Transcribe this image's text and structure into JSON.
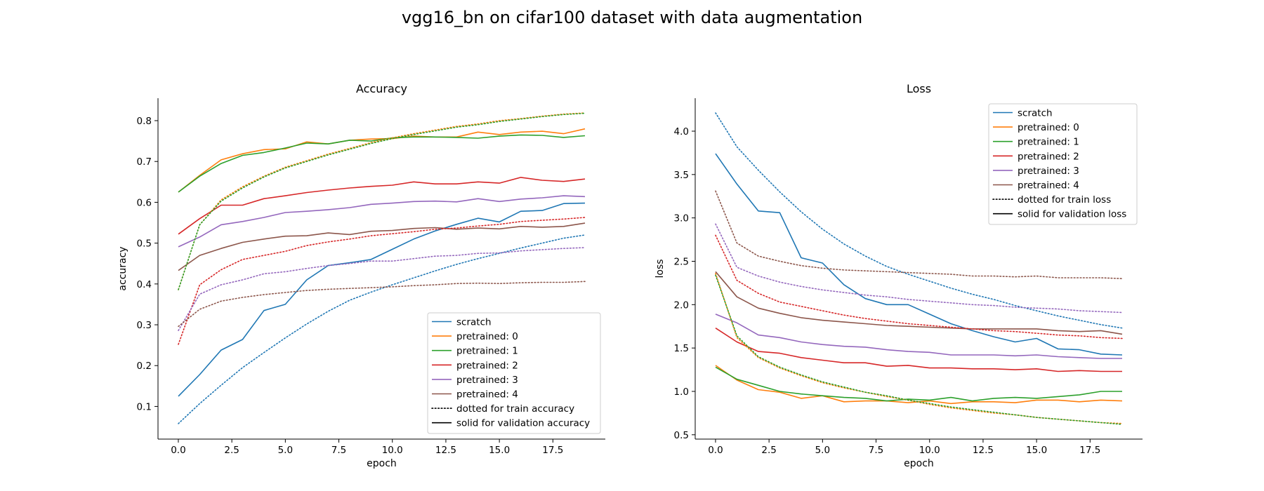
{
  "figure": {
    "suptitle": "vgg16_bn on cifar100 dataset with data augmentation"
  },
  "colors": {
    "scratch": "#1f77b4",
    "pretrained_0": "#ff7f0e",
    "pretrained_1": "#2ca02c",
    "pretrained_2": "#d62728",
    "pretrained_3": "#9467bd",
    "pretrained_4": "#8c564b"
  },
  "chart_data": [
    {
      "type": "line",
      "title": "Accuracy",
      "xlabel": "epoch",
      "ylabel": "accuracy",
      "xlim": [
        -0.95,
        19.95
      ],
      "ylim": [
        0.02,
        0.855
      ],
      "xticks": [
        0.0,
        2.5,
        5.0,
        7.5,
        10.0,
        12.5,
        15.0,
        17.5
      ],
      "xtick_labels": [
        "0.0",
        "2.5",
        "5.0",
        "7.5",
        "10.0",
        "12.5",
        "15.0",
        "17.5"
      ],
      "yticks": [
        0.1,
        0.2,
        0.3,
        0.4,
        0.5,
        0.6,
        0.7,
        0.8
      ],
      "ytick_labels": [
        "0.1",
        "0.2",
        "0.3",
        "0.4",
        "0.5",
        "0.6",
        "0.7",
        "0.8"
      ],
      "grid": false,
      "legend_loc": "lower right",
      "legend": [
        "scratch",
        "pretrained: 0",
        "pretrained: 1",
        "pretrained: 2",
        "pretrained: 3",
        "pretrained: 4",
        "dotted for train accuracy",
        "solid for validation accuracy"
      ],
      "x": [
        0,
        1,
        2,
        3,
        4,
        5,
        6,
        7,
        8,
        9,
        10,
        11,
        12,
        13,
        14,
        15,
        16,
        17,
        18,
        19
      ],
      "series": [
        {
          "name": "scratch",
          "style": "solid",
          "color": "#1f77b4",
          "values": [
            0.125,
            0.178,
            0.238,
            0.264,
            0.335,
            0.35,
            0.41,
            0.445,
            0.452,
            0.46,
            0.485,
            0.51,
            0.53,
            0.546,
            0.561,
            0.552,
            0.578,
            0.58,
            0.597,
            0.598
          ]
        },
        {
          "name": "pretrained: 0",
          "style": "solid",
          "color": "#ff7f0e",
          "values": [
            0.625,
            0.666,
            0.704,
            0.719,
            0.729,
            0.731,
            0.748,
            0.743,
            0.752,
            0.755,
            0.756,
            0.762,
            0.76,
            0.76,
            0.772,
            0.766,
            0.772,
            0.774,
            0.768,
            0.78
          ]
        },
        {
          "name": "pretrained: 1",
          "style": "solid",
          "color": "#2ca02c",
          "values": [
            0.625,
            0.664,
            0.695,
            0.715,
            0.722,
            0.733,
            0.745,
            0.743,
            0.752,
            0.75,
            0.758,
            0.76,
            0.76,
            0.759,
            0.757,
            0.762,
            0.765,
            0.764,
            0.759,
            0.763
          ]
        },
        {
          "name": "pretrained: 2",
          "style": "solid",
          "color": "#d62728",
          "values": [
            0.522,
            0.56,
            0.593,
            0.593,
            0.609,
            0.616,
            0.624,
            0.63,
            0.635,
            0.639,
            0.642,
            0.65,
            0.645,
            0.645,
            0.65,
            0.647,
            0.661,
            0.654,
            0.651,
            0.657
          ]
        },
        {
          "name": "pretrained: 3",
          "style": "solid",
          "color": "#9467bd",
          "values": [
            0.491,
            0.515,
            0.545,
            0.553,
            0.563,
            0.575,
            0.578,
            0.582,
            0.587,
            0.595,
            0.598,
            0.602,
            0.603,
            0.601,
            0.609,
            0.602,
            0.608,
            0.611,
            0.616,
            0.614
          ]
        },
        {
          "name": "pretrained: 4",
          "style": "solid",
          "color": "#8c564b",
          "values": [
            0.433,
            0.47,
            0.487,
            0.502,
            0.51,
            0.517,
            0.518,
            0.525,
            0.521,
            0.529,
            0.531,
            0.536,
            0.538,
            0.534,
            0.537,
            0.535,
            0.541,
            0.539,
            0.541,
            0.549
          ]
        },
        {
          "name": "scratch",
          "style": "dotted",
          "color": "#1f77b4",
          "values": [
            0.058,
            0.107,
            0.152,
            0.195,
            0.232,
            0.268,
            0.302,
            0.333,
            0.36,
            0.38,
            0.398,
            0.415,
            0.432,
            0.448,
            0.462,
            0.475,
            0.488,
            0.5,
            0.512,
            0.52
          ]
        },
        {
          "name": "pretrained: 0",
          "style": "dotted",
          "color": "#ff7f0e",
          "values": [
            0.386,
            0.545,
            0.606,
            0.638,
            0.664,
            0.686,
            0.702,
            0.718,
            0.732,
            0.746,
            0.758,
            0.768,
            0.777,
            0.786,
            0.792,
            0.8,
            0.805,
            0.811,
            0.816,
            0.819
          ]
        },
        {
          "name": "pretrained: 1",
          "style": "dotted",
          "color": "#2ca02c",
          "values": [
            0.386,
            0.545,
            0.603,
            0.635,
            0.662,
            0.684,
            0.7,
            0.716,
            0.73,
            0.744,
            0.756,
            0.766,
            0.775,
            0.784,
            0.79,
            0.798,
            0.804,
            0.81,
            0.815,
            0.818
          ]
        },
        {
          "name": "pretrained: 2",
          "style": "dotted",
          "color": "#d62728",
          "values": [
            0.252,
            0.398,
            0.435,
            0.46,
            0.47,
            0.48,
            0.494,
            0.503,
            0.51,
            0.518,
            0.523,
            0.528,
            0.534,
            0.537,
            0.542,
            0.546,
            0.553,
            0.556,
            0.559,
            0.563
          ]
        },
        {
          "name": "pretrained: 3",
          "style": "dotted",
          "color": "#9467bd",
          "values": [
            0.286,
            0.375,
            0.398,
            0.41,
            0.425,
            0.43,
            0.438,
            0.445,
            0.45,
            0.456,
            0.456,
            0.462,
            0.468,
            0.47,
            0.475,
            0.476,
            0.481,
            0.484,
            0.487,
            0.489
          ]
        },
        {
          "name": "pretrained: 4",
          "style": "dotted",
          "color": "#8c564b",
          "values": [
            0.296,
            0.338,
            0.358,
            0.367,
            0.374,
            0.379,
            0.384,
            0.387,
            0.389,
            0.391,
            0.393,
            0.396,
            0.398,
            0.401,
            0.402,
            0.401,
            0.403,
            0.404,
            0.404,
            0.406
          ]
        }
      ]
    },
    {
      "type": "line",
      "title": "Loss",
      "xlabel": "epoch",
      "ylabel": "loss",
      "xlim": [
        -0.95,
        19.95
      ],
      "ylim": [
        0.45,
        4.38
      ],
      "xticks": [
        0.0,
        2.5,
        5.0,
        7.5,
        10.0,
        12.5,
        15.0,
        17.5
      ],
      "xtick_labels": [
        "0.0",
        "2.5",
        "5.0",
        "7.5",
        "10.0",
        "12.5",
        "15.0",
        "17.5"
      ],
      "yticks": [
        0.5,
        1.0,
        1.5,
        2.0,
        2.5,
        3.0,
        3.5,
        4.0
      ],
      "ytick_labels": [
        "0.5",
        "1.0",
        "1.5",
        "2.0",
        "2.5",
        "3.0",
        "3.5",
        "4.0"
      ],
      "grid": false,
      "legend_loc": "upper right",
      "legend": [
        "scratch",
        "pretrained: 0",
        "pretrained: 1",
        "pretrained: 2",
        "pretrained: 3",
        "pretrained: 4",
        "dotted for train loss",
        "solid for validation loss"
      ],
      "x": [
        0,
        1,
        2,
        3,
        4,
        5,
        6,
        7,
        8,
        9,
        10,
        11,
        12,
        13,
        14,
        15,
        16,
        17,
        18,
        19
      ],
      "series": [
        {
          "name": "scratch",
          "style": "solid",
          "color": "#1f77b4",
          "values": [
            3.74,
            3.39,
            3.08,
            3.06,
            2.54,
            2.48,
            2.23,
            2.07,
            2.0,
            2.0,
            1.89,
            1.78,
            1.7,
            1.63,
            1.57,
            1.61,
            1.49,
            1.48,
            1.43,
            1.42
          ]
        },
        {
          "name": "pretrained: 0",
          "style": "solid",
          "color": "#ff7f0e",
          "values": [
            1.3,
            1.13,
            1.02,
            0.99,
            0.92,
            0.95,
            0.88,
            0.89,
            0.89,
            0.87,
            0.89,
            0.86,
            0.88,
            0.88,
            0.87,
            0.9,
            0.9,
            0.88,
            0.9,
            0.89
          ]
        },
        {
          "name": "pretrained: 1",
          "style": "solid",
          "color": "#2ca02c",
          "values": [
            1.28,
            1.14,
            1.07,
            1.0,
            0.97,
            0.95,
            0.93,
            0.92,
            0.89,
            0.91,
            0.9,
            0.93,
            0.89,
            0.92,
            0.93,
            0.92,
            0.94,
            0.96,
            1.0,
            1.0
          ]
        },
        {
          "name": "pretrained: 2",
          "style": "solid",
          "color": "#d62728",
          "values": [
            1.73,
            1.57,
            1.46,
            1.44,
            1.39,
            1.36,
            1.33,
            1.33,
            1.29,
            1.3,
            1.27,
            1.27,
            1.26,
            1.26,
            1.25,
            1.26,
            1.23,
            1.24,
            1.23,
            1.23
          ]
        },
        {
          "name": "pretrained: 3",
          "style": "solid",
          "color": "#9467bd",
          "values": [
            1.89,
            1.79,
            1.65,
            1.62,
            1.57,
            1.54,
            1.52,
            1.51,
            1.48,
            1.46,
            1.45,
            1.42,
            1.42,
            1.42,
            1.41,
            1.42,
            1.4,
            1.39,
            1.38,
            1.38
          ]
        },
        {
          "name": "pretrained: 4",
          "style": "solid",
          "color": "#8c564b",
          "values": [
            2.38,
            2.09,
            1.96,
            1.9,
            1.85,
            1.82,
            1.8,
            1.78,
            1.76,
            1.75,
            1.74,
            1.73,
            1.72,
            1.72,
            1.72,
            1.72,
            1.7,
            1.69,
            1.7,
            1.66
          ]
        },
        {
          "name": "scratch",
          "style": "dotted",
          "color": "#1f77b4",
          "values": [
            4.21,
            3.82,
            3.55,
            3.3,
            3.07,
            2.87,
            2.7,
            2.56,
            2.44,
            2.35,
            2.27,
            2.19,
            2.12,
            2.06,
            1.99,
            1.93,
            1.87,
            1.82,
            1.77,
            1.73
          ]
        },
        {
          "name": "pretrained: 0",
          "style": "dotted",
          "color": "#ff7f0e",
          "values": [
            2.36,
            1.62,
            1.39,
            1.27,
            1.18,
            1.1,
            1.04,
            0.99,
            0.94,
            0.9,
            0.85,
            0.81,
            0.78,
            0.75,
            0.73,
            0.7,
            0.68,
            0.66,
            0.64,
            0.63
          ]
        },
        {
          "name": "pretrained: 1",
          "style": "dotted",
          "color": "#2ca02c",
          "values": [
            2.34,
            1.64,
            1.4,
            1.28,
            1.19,
            1.11,
            1.05,
            0.99,
            0.95,
            0.9,
            0.86,
            0.82,
            0.79,
            0.76,
            0.73,
            0.7,
            0.68,
            0.66,
            0.64,
            0.62
          ]
        },
        {
          "name": "pretrained: 2",
          "style": "dotted",
          "color": "#d62728",
          "values": [
            2.8,
            2.28,
            2.13,
            2.03,
            1.98,
            1.93,
            1.88,
            1.84,
            1.81,
            1.78,
            1.76,
            1.74,
            1.72,
            1.7,
            1.69,
            1.67,
            1.65,
            1.64,
            1.62,
            1.61
          ]
        },
        {
          "name": "pretrained: 3",
          "style": "dotted",
          "color": "#9467bd",
          "values": [
            2.93,
            2.43,
            2.33,
            2.26,
            2.21,
            2.17,
            2.14,
            2.11,
            2.09,
            2.06,
            2.04,
            2.02,
            2.0,
            1.99,
            1.97,
            1.96,
            1.95,
            1.93,
            1.92,
            1.91
          ]
        },
        {
          "name": "pretrained: 4",
          "style": "dotted",
          "color": "#8c564b",
          "values": [
            3.31,
            2.71,
            2.56,
            2.5,
            2.45,
            2.42,
            2.4,
            2.39,
            2.38,
            2.37,
            2.36,
            2.35,
            2.33,
            2.33,
            2.32,
            2.33,
            2.31,
            2.31,
            2.31,
            2.3
          ]
        }
      ]
    }
  ]
}
